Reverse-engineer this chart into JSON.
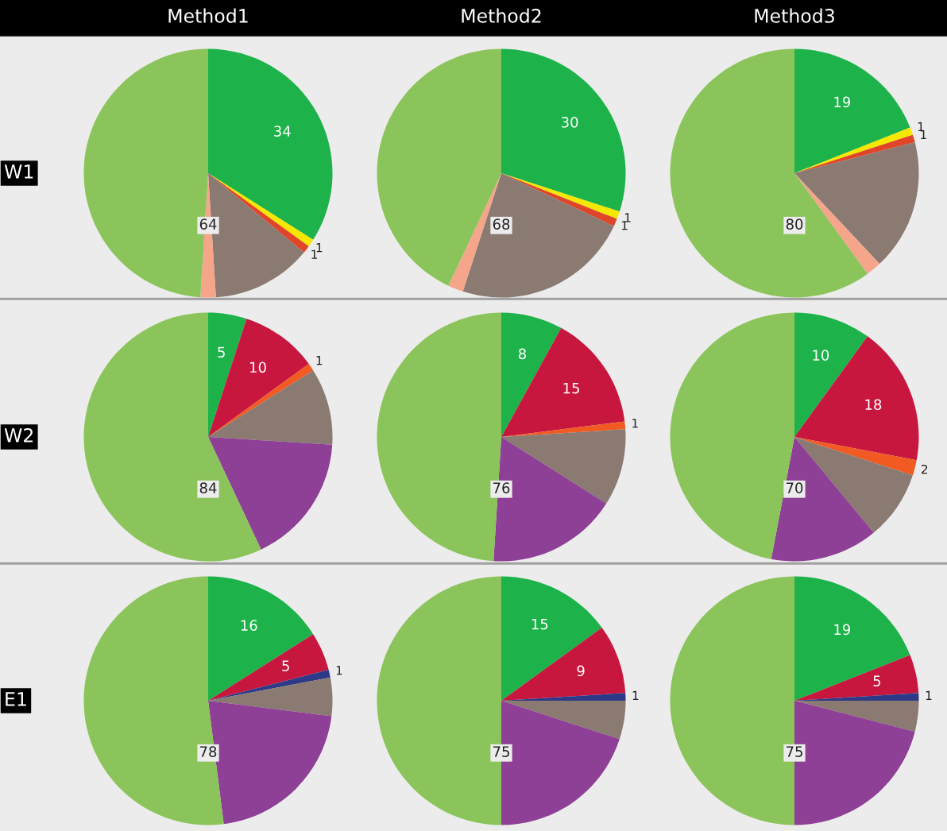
{
  "chart_data": [
    {
      "type": "pie",
      "title": "Method1",
      "ylabel": "W1",
      "categories": [
        null,
        null,
        null,
        null,
        null,
        null
      ],
      "values": [
        34,
        1,
        1,
        13,
        2,
        49
      ],
      "colors": [
        "#1db34a",
        "#f5e700",
        "#e0452a",
        "#8a7a72",
        "#f4a58a",
        "#8bc45a"
      ],
      "value_labels": [
        "34",
        "1",
        "1",
        null,
        null,
        null
      ],
      "annotations": [
        "64"
      ],
      "legend": false
    },
    {
      "type": "pie",
      "title": "Method2",
      "categories": [
        null,
        null,
        null,
        null,
        null,
        null
      ],
      "values": [
        30,
        1,
        1,
        23,
        2,
        43
      ],
      "colors": [
        "#1db34a",
        "#f5e700",
        "#e0452a",
        "#8a7a72",
        "#f4a58a",
        "#8bc45a"
      ],
      "value_labels": [
        "30",
        "1",
        "1",
        null,
        null,
        null
      ],
      "annotations": [
        "68"
      ],
      "legend": false
    },
    {
      "type": "pie",
      "title": "Method3",
      "categories": [
        null,
        null,
        null,
        null,
        null,
        null
      ],
      "values": [
        19,
        1,
        1,
        17,
        2,
        60
      ],
      "colors": [
        "#1db34a",
        "#f5e700",
        "#e0452a",
        "#8a7a72",
        "#f4a58a",
        "#8bc45a"
      ],
      "value_labels": [
        "19",
        "1",
        "1",
        null,
        null,
        null
      ],
      "annotations": [
        "80"
      ],
      "legend": false
    },
    {
      "type": "pie",
      "ylabel": "W2",
      "categories": [
        null,
        null,
        null,
        null,
        null,
        null
      ],
      "values": [
        5,
        10,
        1,
        10,
        17,
        57
      ],
      "colors": [
        "#1db34a",
        "#c8173f",
        "#f15a22",
        "#8a7a72",
        "#8e3f96",
        "#8bc45a"
      ],
      "value_labels": [
        "5",
        "10",
        "1",
        null,
        null,
        null
      ],
      "annotations": [
        "84"
      ],
      "legend": false
    },
    {
      "type": "pie",
      "categories": [
        null,
        null,
        null,
        null,
        null,
        null
      ],
      "values": [
        8,
        15,
        1,
        10,
        17,
        49
      ],
      "colors": [
        "#1db34a",
        "#c8173f",
        "#f15a22",
        "#8a7a72",
        "#8e3f96",
        "#8bc45a"
      ],
      "value_labels": [
        "8",
        "15",
        "1",
        null,
        null,
        null
      ],
      "annotations": [
        "76"
      ],
      "legend": false
    },
    {
      "type": "pie",
      "categories": [
        null,
        null,
        null,
        null,
        null,
        null
      ],
      "values": [
        10,
        18,
        2,
        9,
        14,
        47
      ],
      "colors": [
        "#1db34a",
        "#c8173f",
        "#f15a22",
        "#8a7a72",
        "#8e3f96",
        "#8bc45a"
      ],
      "value_labels": [
        "10",
        "18",
        "2",
        null,
        null,
        null
      ],
      "annotations": [
        "70"
      ],
      "legend": false
    },
    {
      "type": "pie",
      "ylabel": "E1",
      "categories": [
        null,
        null,
        null,
        null,
        null,
        null
      ],
      "values": [
        16,
        5,
        1,
        5,
        21,
        52
      ],
      "colors": [
        "#1db34a",
        "#c8173f",
        "#2e3a87",
        "#8a7a72",
        "#8e3f96",
        "#8bc45a"
      ],
      "value_labels": [
        "16",
        "5",
        "1",
        null,
        null,
        null
      ],
      "annotations": [
        "78"
      ],
      "legend": false
    },
    {
      "type": "pie",
      "categories": [
        null,
        null,
        null,
        null,
        null,
        null
      ],
      "values": [
        15,
        9,
        1,
        5,
        20,
        50
      ],
      "colors": [
        "#1db34a",
        "#c8173f",
        "#2e3a87",
        "#8a7a72",
        "#8e3f96",
        "#8bc45a"
      ],
      "value_labels": [
        "15",
        "9",
        "1",
        null,
        null,
        null
      ],
      "annotations": [
        "75"
      ],
      "legend": false
    },
    {
      "type": "pie",
      "categories": [
        null,
        null,
        null,
        null,
        null,
        null
      ],
      "values": [
        19,
        5,
        1,
        4,
        21,
        50
      ],
      "colors": [
        "#1db34a",
        "#c8173f",
        "#2e3a87",
        "#8a7a72",
        "#8e3f96",
        "#8bc45a"
      ],
      "value_labels": [
        "19",
        "5",
        "1",
        null,
        null,
        null
      ],
      "annotations": [
        "75"
      ],
      "legend": false
    }
  ]
}
